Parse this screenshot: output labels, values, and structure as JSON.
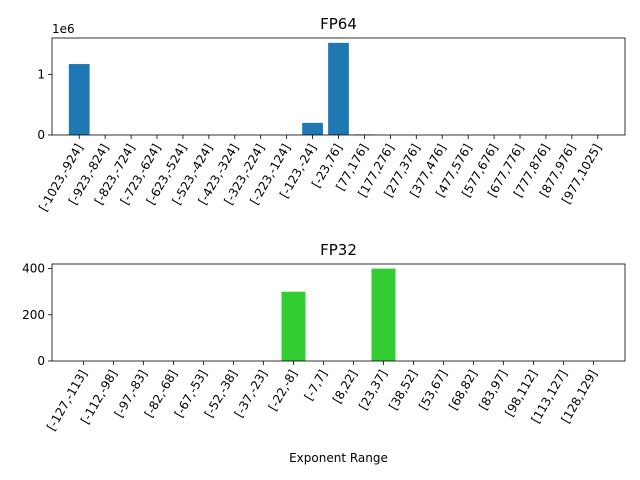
{
  "chart_data": [
    {
      "type": "bar",
      "title": "FP64",
      "xlabel": "",
      "ylabel": "",
      "y_offset_label": "1e6",
      "ylim": [
        0,
        1.6
      ],
      "yticks": [
        0,
        1
      ],
      "color": "#1f77b4",
      "categories": [
        "[-1023,-924]",
        "[-923,-824]",
        "[-823,-724]",
        "[-723,-624]",
        "[-623,-524]",
        "[-523,-424]",
        "[-423,-324]",
        "[-323,-224]",
        "[-223,-124]",
        "[-123,-24]",
        "[-23,76]",
        "[77,176]",
        "[177,276]",
        "[277,376]",
        "[377,476]",
        "[477,576]",
        "[577,676]",
        "[677,776]",
        "[777,876]",
        "[877,976]",
        "[977,1025]"
      ],
      "values": [
        1.17,
        0,
        0,
        0,
        0,
        0,
        0,
        0,
        0,
        0.2,
        1.52,
        0.01,
        0,
        0,
        0,
        0,
        0,
        0,
        0,
        0,
        0
      ]
    },
    {
      "type": "bar",
      "title": "FP32",
      "xlabel": "Exponent Range",
      "ylabel": "",
      "ylim": [
        0,
        420
      ],
      "yticks": [
        0,
        200,
        400
      ],
      "color": "#32cd32",
      "categories": [
        "[-127,-113]",
        "[-112,-98]",
        "[-97,-83]",
        "[-82,-68]",
        "[-67,-53]",
        "[-52,-38]",
        "[-37,-23]",
        "[-22,-8]",
        "[-7,7]",
        "[8,22]",
        "[23,37]",
        "[38,52]",
        "[53,67]",
        "[68,82]",
        "[83,97]",
        "[98,112]",
        "[113,127]",
        "[128,129]"
      ],
      "values": [
        0,
        0,
        0,
        0,
        0,
        0,
        0,
        300,
        0,
        0,
        400,
        0,
        0,
        0,
        0,
        0,
        0,
        0
      ]
    }
  ]
}
